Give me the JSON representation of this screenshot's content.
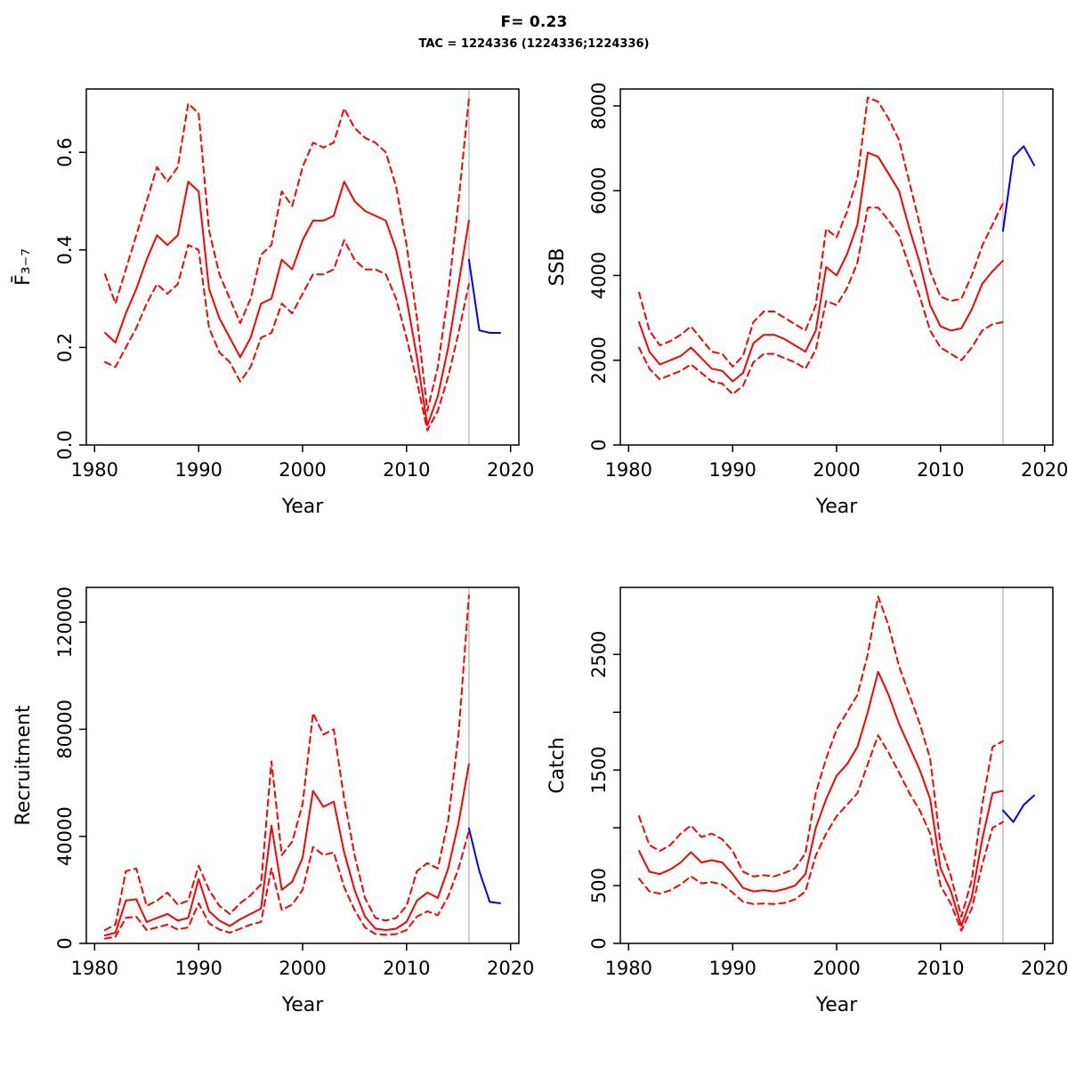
{
  "header": {
    "title": "F= 0.23",
    "subtitle": "TAC = 1224336 (1224336;1224336)"
  },
  "colors": {
    "median": "#ff0000",
    "interval": "#ff0000",
    "forecast": "#0000ff",
    "divider": "#bebebe",
    "axis": "#000000",
    "background": "#ffffff"
  },
  "chart_data": [
    {
      "type": "line",
      "name": "fbar",
      "title": "",
      "ylabel": "F̄₃₋₇",
      "xlabel": "Year",
      "xlim": [
        1979.2,
        2020.8
      ],
      "ylim": [
        0,
        0.73
      ],
      "xticks": [
        1980,
        1990,
        2000,
        2010,
        2020
      ],
      "xtick_labels": [
        "1980",
        "1990",
        "2000",
        "2010",
        "2020"
      ],
      "yticks": [
        0,
        0.2,
        0.4,
        0.6
      ],
      "ytick_labels": [
        "0.0",
        "0.2",
        "0.4",
        "0.6"
      ],
      "vline_x": 2016,
      "grid": false,
      "x": [
        1981,
        1982,
        1983,
        1984,
        1985,
        1986,
        1987,
        1988,
        1989,
        1990,
        1991,
        1992,
        1993,
        1994,
        1995,
        1996,
        1997,
        1998,
        1999,
        2000,
        2001,
        2002,
        2003,
        2004,
        2005,
        2006,
        2007,
        2008,
        2009,
        2010,
        2011,
        2012,
        2013,
        2014,
        2015,
        2016
      ],
      "series": [
        {
          "name": "median",
          "color": "#ff0000",
          "style": "solid",
          "values": [
            0.23,
            0.21,
            0.27,
            0.32,
            0.38,
            0.43,
            0.41,
            0.43,
            0.54,
            0.52,
            0.32,
            0.26,
            0.22,
            0.18,
            0.22,
            0.29,
            0.3,
            0.38,
            0.36,
            0.42,
            0.46,
            0.46,
            0.47,
            0.54,
            0.5,
            0.48,
            0.47,
            0.46,
            0.4,
            0.3,
            0.18,
            0.04,
            0.1,
            0.2,
            0.33,
            0.46
          ]
        },
        {
          "name": "upper",
          "color": "#ff0000",
          "style": "dashed",
          "values": [
            0.35,
            0.29,
            0.36,
            0.43,
            0.5,
            0.57,
            0.54,
            0.57,
            0.7,
            0.68,
            0.44,
            0.35,
            0.3,
            0.25,
            0.3,
            0.39,
            0.41,
            0.52,
            0.49,
            0.57,
            0.62,
            0.61,
            0.62,
            0.69,
            0.65,
            0.63,
            0.62,
            0.6,
            0.53,
            0.41,
            0.26,
            0.07,
            0.16,
            0.31,
            0.5,
            0.71
          ]
        },
        {
          "name": "lower",
          "color": "#ff0000",
          "style": "dashed",
          "values": [
            0.17,
            0.16,
            0.2,
            0.24,
            0.29,
            0.33,
            0.31,
            0.33,
            0.41,
            0.4,
            0.24,
            0.19,
            0.17,
            0.13,
            0.16,
            0.22,
            0.23,
            0.29,
            0.27,
            0.31,
            0.35,
            0.35,
            0.36,
            0.42,
            0.38,
            0.36,
            0.36,
            0.35,
            0.3,
            0.22,
            0.13,
            0.03,
            0.07,
            0.14,
            0.23,
            0.33
          ]
        },
        {
          "name": "forecast",
          "color": "#0000ff",
          "style": "solid",
          "x": [
            2016,
            2017,
            2018,
            2019
          ],
          "values": [
            0.38,
            0.235,
            0.23,
            0.23
          ]
        }
      ]
    },
    {
      "type": "line",
      "name": "ssb",
      "title": "",
      "ylabel": "SSB",
      "xlabel": "Year",
      "xlim": [
        1979.2,
        2020.8
      ],
      "ylim": [
        0,
        8400
      ],
      "xticks": [
        1980,
        1990,
        2000,
        2010,
        2020
      ],
      "xtick_labels": [
        "1980",
        "1990",
        "2000",
        "2010",
        "2020"
      ],
      "yticks": [
        0,
        2000,
        4000,
        6000,
        8000
      ],
      "ytick_labels": [
        "0",
        "2000",
        "4000",
        "6000",
        "8000"
      ],
      "vline_x": 2016,
      "grid": false,
      "x": [
        1981,
        1982,
        1983,
        1984,
        1985,
        1986,
        1987,
        1988,
        1989,
        1990,
        1991,
        1992,
        1993,
        1994,
        1995,
        1996,
        1997,
        1998,
        1999,
        2000,
        2001,
        2002,
        2003,
        2004,
        2005,
        2006,
        2007,
        2008,
        2009,
        2010,
        2011,
        2012,
        2013,
        2014,
        2015,
        2016
      ],
      "series": [
        {
          "name": "median",
          "color": "#ff0000",
          "style": "solid",
          "values": [
            2900,
            2200,
            1900,
            2000,
            2100,
            2300,
            2050,
            1800,
            1750,
            1500,
            1700,
            2400,
            2600,
            2600,
            2500,
            2350,
            2200,
            2700,
            4200,
            4000,
            4500,
            5200,
            6900,
            6800,
            6400,
            6000,
            5100,
            4300,
            3300,
            2800,
            2700,
            2750,
            3200,
            3800,
            4100,
            4350
          ]
        },
        {
          "name": "upper",
          "color": "#ff0000",
          "style": "dashed",
          "values": [
            3600,
            2700,
            2350,
            2450,
            2600,
            2800,
            2500,
            2200,
            2150,
            1850,
            2100,
            2900,
            3150,
            3150,
            3000,
            2850,
            2700,
            3300,
            5100,
            4900,
            5500,
            6300,
            8200,
            8100,
            7700,
            7200,
            6200,
            5200,
            4100,
            3500,
            3400,
            3450,
            4000,
            4700,
            5200,
            5700
          ]
        },
        {
          "name": "lower",
          "color": "#ff0000",
          "style": "dashed",
          "values": [
            2300,
            1800,
            1550,
            1650,
            1750,
            1900,
            1700,
            1500,
            1450,
            1200,
            1400,
            1950,
            2150,
            2150,
            2050,
            1950,
            1800,
            2250,
            3400,
            3300,
            3700,
            4300,
            5600,
            5600,
            5300,
            4950,
            4200,
            3500,
            2700,
            2300,
            2150,
            2000,
            2300,
            2700,
            2850,
            2900
          ]
        },
        {
          "name": "forecast",
          "color": "#0000ff",
          "style": "solid",
          "x": [
            2016,
            2017,
            2018,
            2019
          ],
          "values": [
            5050,
            6800,
            7050,
            6600
          ]
        }
      ]
    },
    {
      "type": "line",
      "name": "recruitment",
      "title": "",
      "ylabel": "Recruitment",
      "xlabel": "Year",
      "xlim": [
        1979.2,
        2020.8
      ],
      "ylim": [
        0,
        133000
      ],
      "xticks": [
        1980,
        1990,
        2000,
        2010,
        2020
      ],
      "xtick_labels": [
        "1980",
        "1990",
        "2000",
        "2010",
        "2020"
      ],
      "yticks": [
        0,
        40000,
        80000,
        120000
      ],
      "ytick_labels": [
        "0",
        "40000",
        "80000",
        "120000"
      ],
      "vline_x": 2016,
      "grid": false,
      "x": [
        1981,
        1982,
        1983,
        1984,
        1985,
        1986,
        1987,
        1988,
        1989,
        1990,
        1991,
        1992,
        1993,
        1994,
        1995,
        1996,
        1997,
        1998,
        1999,
        2000,
        2001,
        2002,
        2003,
        2004,
        2005,
        2006,
        2007,
        2008,
        2009,
        2010,
        2011,
        2012,
        2013,
        2014,
        2015,
        2016
      ],
      "series": [
        {
          "name": "median",
          "color": "#ff0000",
          "style": "solid",
          "values": [
            3000,
            4000,
            16000,
            16500,
            8000,
            9500,
            11000,
            8500,
            9500,
            24000,
            12000,
            8500,
            6500,
            9000,
            11000,
            13000,
            44000,
            20000,
            23000,
            32000,
            57000,
            51000,
            53000,
            34000,
            20000,
            10000,
            5500,
            5000,
            5500,
            8000,
            16000,
            19000,
            17000,
            28000,
            45000,
            67000
          ]
        },
        {
          "name": "upper",
          "color": "#ff0000",
          "style": "dashed",
          "values": [
            5000,
            7000,
            27000,
            28000,
            14000,
            16000,
            19000,
            14500,
            16000,
            29000,
            20000,
            14000,
            11000,
            15000,
            18000,
            22000,
            68000,
            33000,
            38000,
            52000,
            86000,
            78000,
            80000,
            54000,
            33000,
            17000,
            9500,
            8500,
            9500,
            14000,
            27000,
            30000,
            28000,
            46000,
            78000,
            130000
          ]
        },
        {
          "name": "lower",
          "color": "#ff0000",
          "style": "dashed",
          "values": [
            1800,
            2500,
            9500,
            10000,
            5000,
            6000,
            7000,
            5200,
            6000,
            15000,
            7500,
            5200,
            4000,
            5500,
            7000,
            8000,
            28000,
            12500,
            14500,
            20000,
            36000,
            33000,
            34000,
            21000,
            12500,
            6000,
            3500,
            3200,
            3500,
            5000,
            10000,
            12000,
            10500,
            17500,
            28000,
            42000
          ]
        },
        {
          "name": "forecast",
          "color": "#0000ff",
          "style": "solid",
          "x": [
            2016,
            2017,
            2018,
            2019
          ],
          "values": [
            43000,
            27000,
            15500,
            15000
          ]
        }
      ]
    },
    {
      "type": "line",
      "name": "catch",
      "title": "",
      "ylabel": "Catch",
      "xlabel": "Year",
      "xlim": [
        1979.2,
        2020.8
      ],
      "ylim": [
        0,
        3080
      ],
      "xticks": [
        1980,
        1990,
        2000,
        2010,
        2020
      ],
      "xtick_labels": [
        "1980",
        "1990",
        "2000",
        "2010",
        "2020"
      ],
      "yticks": [
        0,
        500,
        1000,
        1500,
        2000,
        2500
      ],
      "ytick_labels": [
        "0",
        "500",
        "",
        "1500",
        "",
        "2500"
      ],
      "vline_x": 2016,
      "grid": false,
      "x": [
        1981,
        1982,
        1983,
        1984,
        1985,
        1986,
        1987,
        1988,
        1989,
        1990,
        1991,
        1992,
        1993,
        1994,
        1995,
        1996,
        1997,
        1998,
        1999,
        2000,
        2001,
        2002,
        2003,
        2004,
        2005,
        2006,
        2007,
        2008,
        2009,
        2010,
        2011,
        2012,
        2013,
        2014,
        2015,
        2016
      ],
      "series": [
        {
          "name": "median",
          "color": "#ff0000",
          "style": "solid",
          "values": [
            800,
            620,
            600,
            640,
            700,
            790,
            700,
            720,
            700,
            600,
            480,
            450,
            460,
            450,
            470,
            500,
            600,
            1000,
            1250,
            1450,
            1550,
            1700,
            2000,
            2350,
            2150,
            1900,
            1700,
            1500,
            1250,
            650,
            450,
            150,
            400,
            900,
            1300,
            1320
          ]
        },
        {
          "name": "upper",
          "color": "#ff0000",
          "style": "dashed",
          "values": [
            1100,
            850,
            800,
            850,
            950,
            1020,
            920,
            950,
            900,
            800,
            620,
            580,
            590,
            580,
            610,
            650,
            780,
            1300,
            1600,
            1850,
            2000,
            2150,
            2500,
            3000,
            2750,
            2400,
            2150,
            1900,
            1600,
            850,
            580,
            230,
            550,
            1200,
            1700,
            1750
          ]
        },
        {
          "name": "lower",
          "color": "#ff0000",
          "style": "dashed",
          "values": [
            560,
            450,
            430,
            460,
            510,
            580,
            520,
            530,
            510,
            440,
            360,
            340,
            345,
            340,
            350,
            380,
            450,
            760,
            950,
            1100,
            1200,
            1300,
            1550,
            1800,
            1650,
            1480,
            1300,
            1150,
            950,
            500,
            340,
            110,
            300,
            680,
            1000,
            1050
          ]
        },
        {
          "name": "forecast",
          "color": "#0000ff",
          "style": "solid",
          "x": [
            2016,
            2017,
            2018,
            2019
          ],
          "values": [
            1150,
            1050,
            1200,
            1280
          ]
        }
      ]
    }
  ]
}
